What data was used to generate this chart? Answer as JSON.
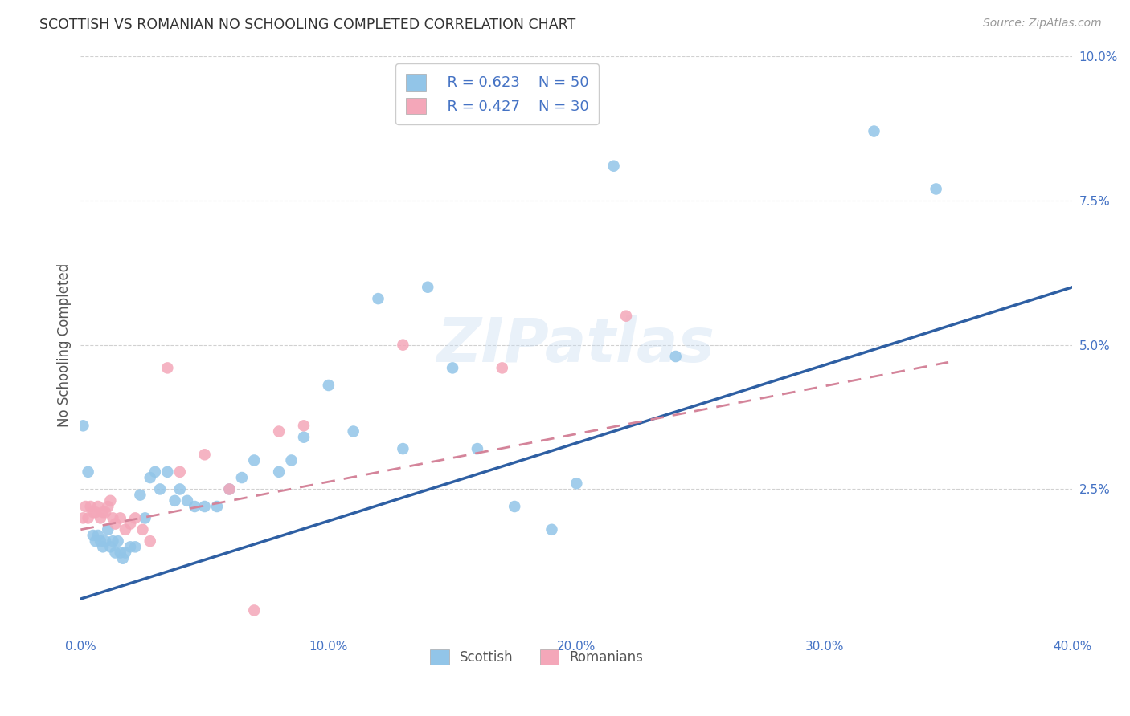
{
  "title": "SCOTTISH VS ROMANIAN NO SCHOOLING COMPLETED CORRELATION CHART",
  "source": "Source: ZipAtlas.com",
  "ylabel": "No Schooling Completed",
  "xlim": [
    0.0,
    0.4
  ],
  "ylim": [
    0.0,
    0.1
  ],
  "xtick_labels": [
    "0.0%",
    "",
    "10.0%",
    "",
    "20.0%",
    "",
    "30.0%",
    "",
    "40.0%"
  ],
  "xtick_vals": [
    0.0,
    0.05,
    0.1,
    0.15,
    0.2,
    0.25,
    0.3,
    0.35,
    0.4
  ],
  "ytick_labels": [
    "",
    "2.5%",
    "5.0%",
    "7.5%",
    "10.0%"
  ],
  "ytick_vals": [
    0.0,
    0.025,
    0.05,
    0.075,
    0.1
  ],
  "scottish_R": "0.623",
  "scottish_N": "50",
  "romanian_R": "0.427",
  "romanian_N": "30",
  "scottish_color": "#92C5E8",
  "romanian_color": "#F4A7B9",
  "trendline_scottish_color": "#2E5FA3",
  "trendline_romanian_color": "#D4849A",
  "legend_text_color": "#4472C4",
  "watermark": "ZIPatlas",
  "scottish_x": [
    0.001,
    0.003,
    0.005,
    0.006,
    0.007,
    0.008,
    0.009,
    0.01,
    0.011,
    0.012,
    0.013,
    0.014,
    0.015,
    0.016,
    0.017,
    0.018,
    0.02,
    0.022,
    0.024,
    0.026,
    0.028,
    0.03,
    0.032,
    0.035,
    0.038,
    0.04,
    0.043,
    0.046,
    0.05,
    0.055,
    0.06,
    0.065,
    0.07,
    0.08,
    0.085,
    0.09,
    0.1,
    0.11,
    0.12,
    0.13,
    0.14,
    0.15,
    0.16,
    0.175,
    0.19,
    0.2,
    0.215,
    0.24,
    0.32,
    0.345
  ],
  "scottish_y": [
    0.036,
    0.028,
    0.017,
    0.016,
    0.017,
    0.016,
    0.015,
    0.016,
    0.018,
    0.015,
    0.016,
    0.014,
    0.016,
    0.014,
    0.013,
    0.014,
    0.015,
    0.015,
    0.024,
    0.02,
    0.027,
    0.028,
    0.025,
    0.028,
    0.023,
    0.025,
    0.023,
    0.022,
    0.022,
    0.022,
    0.025,
    0.027,
    0.03,
    0.028,
    0.03,
    0.034,
    0.043,
    0.035,
    0.058,
    0.032,
    0.06,
    0.046,
    0.032,
    0.022,
    0.018,
    0.026,
    0.081,
    0.048,
    0.087,
    0.077
  ],
  "romanian_x": [
    0.001,
    0.002,
    0.003,
    0.004,
    0.005,
    0.006,
    0.007,
    0.008,
    0.009,
    0.01,
    0.011,
    0.012,
    0.013,
    0.014,
    0.016,
    0.018,
    0.02,
    0.022,
    0.025,
    0.028,
    0.035,
    0.04,
    0.05,
    0.06,
    0.07,
    0.08,
    0.09,
    0.13,
    0.17,
    0.22
  ],
  "romanian_y": [
    0.02,
    0.022,
    0.02,
    0.022,
    0.021,
    0.021,
    0.022,
    0.02,
    0.021,
    0.021,
    0.022,
    0.023,
    0.02,
    0.019,
    0.02,
    0.018,
    0.019,
    0.02,
    0.018,
    0.016,
    0.046,
    0.028,
    0.031,
    0.025,
    0.004,
    0.035,
    0.036,
    0.05,
    0.046,
    0.055
  ],
  "trendline_scottish_x0": 0.0,
  "trendline_scottish_y0": 0.006,
  "trendline_scottish_x1": 0.4,
  "trendline_scottish_y1": 0.06,
  "trendline_romanian_x0": 0.0,
  "trendline_romanian_y0": 0.018,
  "trendline_romanian_x1": 0.35,
  "trendline_romanian_y1": 0.047
}
